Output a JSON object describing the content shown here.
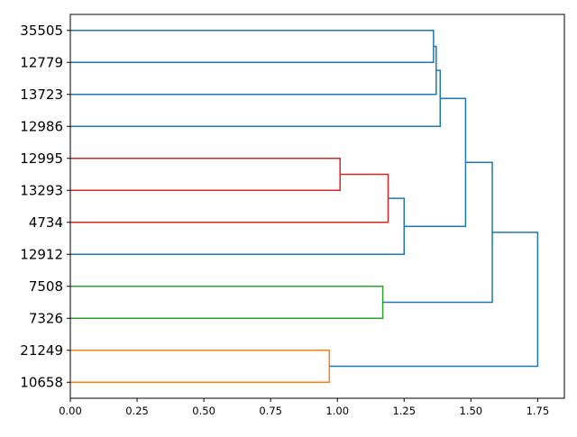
{
  "chart_data": {
    "type": "dendrogram",
    "orientation": "left",
    "xlim": [
      0,
      1.85
    ],
    "xticks": [
      "0.00",
      "0.25",
      "0.50",
      "0.75",
      "1.00",
      "1.25",
      "1.50",
      "1.75"
    ],
    "leaves": [
      "35505",
      "12779",
      "13723",
      "12986",
      "12995",
      "13293",
      "4734",
      "12912",
      "7508",
      "7326",
      "21249",
      "10658"
    ],
    "links": [
      {
        "left": "35505",
        "right": "12779",
        "height": 1.36,
        "color": "#1f77b4"
      },
      {
        "left": "L1",
        "right": "13723",
        "height": 1.37,
        "color": "#1f77b4"
      },
      {
        "left": "L2",
        "right": "12986",
        "height": 1.385,
        "color": "#1f77b4"
      },
      {
        "left": "12995",
        "right": "13293",
        "height": 1.01,
        "color": "#d62728"
      },
      {
        "left": "L4",
        "right": "4734",
        "height": 1.19,
        "color": "#d62728"
      },
      {
        "left": "L5",
        "right": "12912",
        "height": 1.25,
        "color": "#1f77b4"
      },
      {
        "left": "L3",
        "right": "L6",
        "height": 1.48,
        "color": "#1f77b4"
      },
      {
        "left": "7508",
        "right": "7326",
        "height": 1.17,
        "color": "#2ca02c"
      },
      {
        "left": "L7",
        "right": "L8",
        "height": 1.58,
        "color": "#1f77b4"
      },
      {
        "left": "21249",
        "right": "10658",
        "height": 0.97,
        "color": "#ff7f0e"
      },
      {
        "left": "L9",
        "right": "L10",
        "height": 1.75,
        "color": "#1f77b4"
      }
    ],
    "colors": {
      "above_threshold": "#1f77b4",
      "cluster_red": "#d62728",
      "cluster_green": "#2ca02c",
      "cluster_orange": "#ff7f0e"
    },
    "title": "",
    "xlabel": "",
    "ylabel": "",
    "grid": false,
    "legend": "none"
  }
}
